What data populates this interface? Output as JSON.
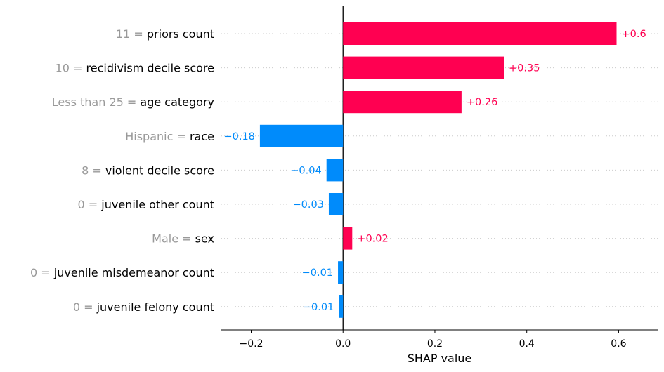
{
  "chart_data": {
    "type": "bar",
    "orientation": "horizontal",
    "xlabel": "SHAP value",
    "xlim": [
      -0.265,
      0.685
    ],
    "xticks": [
      -0.2,
      0.0,
      0.2,
      0.4,
      0.6
    ],
    "xtick_labels": [
      "−0.2",
      "0.0",
      "0.2",
      "0.4",
      "0.6"
    ],
    "zero_line": true,
    "row_gridlines": "dotted",
    "colors": {
      "positive": "#ff0051",
      "negative": "#008bfb",
      "feature_value": "#999999",
      "feature_name": "#000000"
    },
    "features": [
      {
        "value_text": "11 = ",
        "name": "priors count",
        "shap": 0.5955,
        "label": "+0.6"
      },
      {
        "value_text": "10 = ",
        "name": "recidivism decile score",
        "shap": 0.35,
        "label": "+0.35"
      },
      {
        "value_text": "Less than 25 = ",
        "name": "age category",
        "shap": 0.258,
        "label": "+0.26"
      },
      {
        "value_text": "Hispanic = ",
        "name": "race",
        "shap": -0.181,
        "label": "−0.18"
      },
      {
        "value_text": "8 = ",
        "name": "violent decile score",
        "shap": -0.036,
        "label": "−0.04"
      },
      {
        "value_text": "0 = ",
        "name": "juvenile other count",
        "shap": -0.031,
        "label": "−0.03"
      },
      {
        "value_text": "Male = ",
        "name": "sex",
        "shap": 0.02,
        "label": "+0.02"
      },
      {
        "value_text": "0 = ",
        "name": "juvenile misdemeanor count",
        "shap": -0.011,
        "label": "−0.01"
      },
      {
        "value_text": "0 = ",
        "name": "juvenile felony count",
        "shap": -0.009,
        "label": "−0.01"
      }
    ]
  }
}
